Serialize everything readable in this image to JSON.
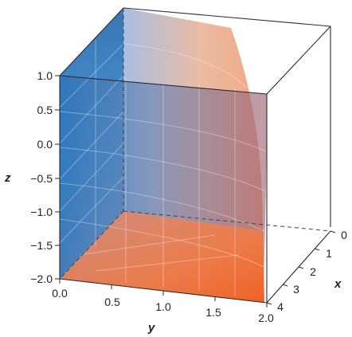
{
  "chart_data": {
    "type": "surface3d",
    "description_of_marks": "translucent 3D surface z = f(x,y) shown inside bounding box; filled region over xy-plane",
    "axes": {
      "x": {
        "label": "x",
        "range": [
          0,
          4
        ],
        "ticks": [
          "0",
          "1",
          "2",
          "3",
          "4"
        ]
      },
      "y": {
        "label": "y",
        "range": [
          0.0,
          2.0
        ],
        "ticks": [
          "0.0",
          "0.5",
          "1.0",
          "1.5",
          "2.0"
        ]
      },
      "z": {
        "label": "z",
        "range": [
          -2.0,
          1.0
        ],
        "ticks": [
          "1.0",
          "0.5",
          "0.0",
          "−0.5",
          "−1.0",
          "−1.5",
          "−2.0"
        ]
      }
    },
    "surface_profile": {
      "y": [
        0.0,
        0.5,
        1.0,
        1.5,
        2.0
      ],
      "top_edge_z": [
        1.0,
        0.94,
        0.75,
        0.44,
        0.0
      ]
    },
    "colors": {
      "left_face": "#3b86c8",
      "top_face": "#f0a378",
      "bottom_face": "#ee6a32"
    }
  }
}
